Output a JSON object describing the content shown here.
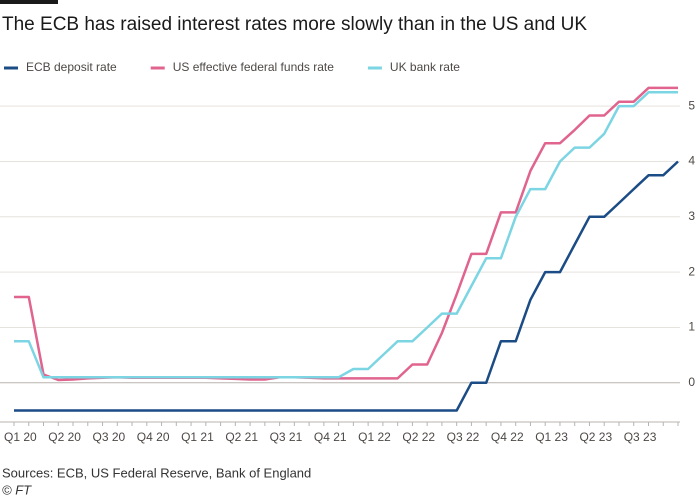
{
  "chart_data": {
    "type": "line",
    "title": "The ECB has raised interest rates more slowly than in the US and UK",
    "source": "Sources: ECB, US Federal Reserve, Bank of England",
    "credit": "© FT",
    "categories": [
      "Q1 20",
      null,
      null,
      "Q2 20",
      null,
      null,
      "Q3 20",
      null,
      null,
      "Q4 20",
      null,
      null,
      "Q1 21",
      null,
      null,
      "Q2 21",
      null,
      null,
      "Q3 21",
      null,
      null,
      "Q4 21",
      null,
      null,
      "Q1 22",
      null,
      null,
      "Q2 22",
      null,
      null,
      "Q3 22",
      null,
      null,
      "Q4 22",
      null,
      null,
      "Q1 23",
      null,
      null,
      "Q2 23",
      null,
      null,
      "Q3 23",
      null,
      null,
      null
    ],
    "series": [
      {
        "name": "ECB deposit rate",
        "color": "#1b4c85",
        "values": [
          -0.5,
          -0.5,
          -0.5,
          -0.5,
          -0.5,
          -0.5,
          -0.5,
          -0.5,
          -0.5,
          -0.5,
          -0.5,
          -0.5,
          -0.5,
          -0.5,
          -0.5,
          -0.5,
          -0.5,
          -0.5,
          -0.5,
          -0.5,
          -0.5,
          -0.5,
          -0.5,
          -0.5,
          -0.5,
          -0.5,
          -0.5,
          -0.5,
          -0.5,
          -0.5,
          -0.5,
          0,
          0,
          0.75,
          0.75,
          1.5,
          2.0,
          2.0,
          2.5,
          3.0,
          3.0,
          3.25,
          3.5,
          3.75,
          3.75,
          4.0
        ]
      },
      {
        "name": "US effective federal funds rate",
        "color": "#e0648e",
        "values": [
          1.55,
          1.55,
          0.15,
          0.05,
          0.06,
          0.08,
          0.09,
          0.1,
          0.09,
          0.09,
          0.09,
          0.09,
          0.09,
          0.09,
          0.08,
          0.07,
          0.06,
          0.06,
          0.1,
          0.1,
          0.09,
          0.08,
          0.08,
          0.08,
          0.08,
          0.08,
          0.08,
          0.33,
          0.33,
          0.9,
          1.6,
          2.33,
          2.33,
          3.08,
          3.08,
          3.83,
          4.33,
          4.33,
          4.57,
          4.83,
          4.83,
          5.08,
          5.08,
          5.33,
          5.33,
          5.33
        ]
      },
      {
        "name": "UK bank rate",
        "color": "#7bd5e3",
        "values": [
          0.75,
          0.75,
          0.1,
          0.1,
          0.1,
          0.1,
          0.1,
          0.1,
          0.1,
          0.1,
          0.1,
          0.1,
          0.1,
          0.1,
          0.1,
          0.1,
          0.1,
          0.1,
          0.1,
          0.1,
          0.1,
          0.1,
          0.1,
          0.25,
          0.25,
          0.5,
          0.75,
          0.75,
          1.0,
          1.25,
          1.25,
          1.75,
          2.25,
          2.25,
          3.0,
          3.5,
          3.5,
          4.0,
          4.25,
          4.25,
          4.5,
          5.0,
          5.0,
          5.25,
          5.25,
          5.25
        ]
      }
    ],
    "ylim": [
      -0.6,
      5.4
    ],
    "yticks": [
      0,
      1,
      2,
      3,
      4,
      5
    ],
    "grid": true
  }
}
